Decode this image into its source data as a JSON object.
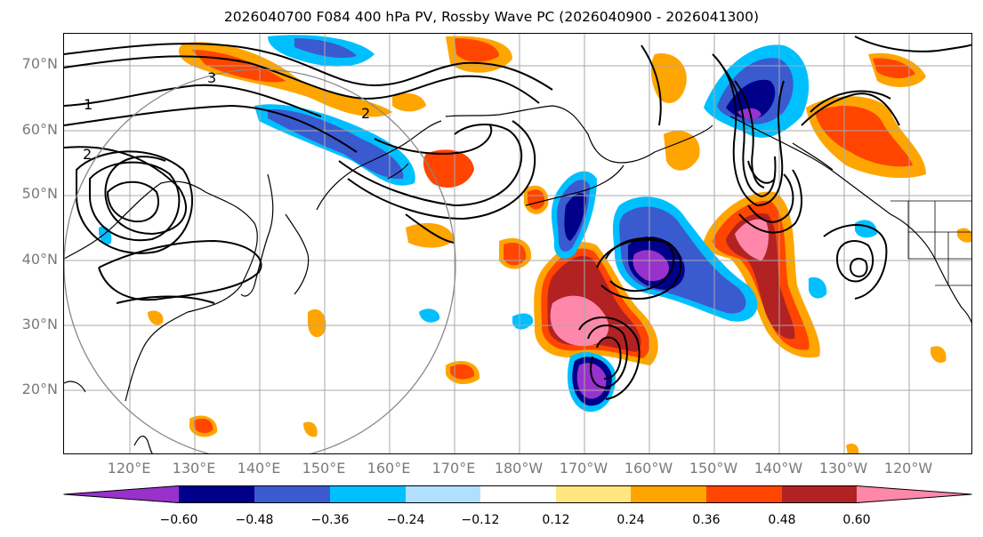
{
  "title": "2026040700 F084 400 hPa PV, Rossby Wave PC (2026040900 - 2026041300)",
  "map": {
    "lat_labels": [
      "70°N",
      "60°N",
      "50°N",
      "40°N",
      "30°N",
      "20°N"
    ],
    "lon_labels": [
      "120°E",
      "130°E",
      "140°E",
      "150°E",
      "160°E",
      "170°E",
      "180°W",
      "170°W",
      "160°W",
      "150°W",
      "140°W",
      "130°W",
      "120°W"
    ],
    "contour_labels": [
      "1",
      "2",
      "3",
      "2"
    ]
  },
  "colorbar": {
    "ticks": [
      "−0.60",
      "−0.48",
      "−0.36",
      "−0.24",
      "−0.12",
      "0.12",
      "0.24",
      "0.36",
      "0.48",
      "0.60"
    ],
    "colors": [
      "#9932cc",
      "#00008b",
      "#3a5bcf",
      "#00bfff",
      "#b0e0ff",
      "#ffffff",
      "#ffe680",
      "#ffa500",
      "#ff4500",
      "#b22222",
      "#ff88aa"
    ]
  }
}
